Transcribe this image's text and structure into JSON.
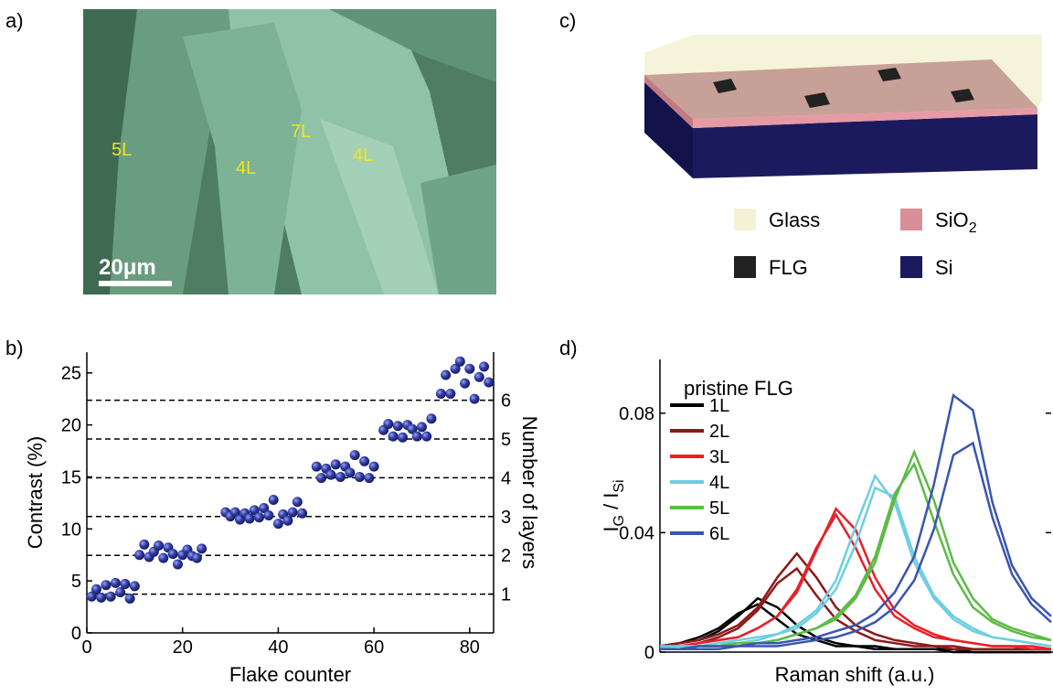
{
  "panel_labels": [
    "a)",
    "b)",
    "c)",
    "d)"
  ],
  "micrograph": {
    "labels": [
      "5L",
      "4L",
      "7L",
      "4L"
    ],
    "scale_bar": "20μm"
  },
  "diagram": {
    "legend": [
      {
        "text": "Glass",
        "color": "#f4f2d6"
      },
      {
        "text": "SiO",
        "sub": "2",
        "color": "#d98f99"
      },
      {
        "text": "FLG",
        "color": "#222222"
      },
      {
        "text": "Si",
        "color": "#1c1a5e"
      }
    ]
  },
  "chart_data": [
    {
      "type": "scatter",
      "xlabel": "Flake counter",
      "ylabel": "Contrast (%)",
      "y2label": "Number of layers",
      "xlim": [
        0,
        85
      ],
      "xticks": [
        0,
        20,
        40,
        60,
        80
      ],
      "ylim": [
        0,
        27
      ],
      "yticks": [
        0,
        5,
        10,
        15,
        20,
        25
      ],
      "y2lim": [
        0,
        7.24
      ],
      "y2ticks": [
        1,
        2,
        3,
        4,
        5,
        6
      ],
      "y2grid": true,
      "series": [
        {
          "color": "#2b3399",
          "x": [
            1,
            2,
            3,
            4,
            5,
            6,
            7,
            8,
            9,
            10,
            11,
            12,
            13,
            14,
            15,
            16,
            17,
            18,
            19,
            20,
            21,
            22,
            23,
            24,
            29,
            30,
            31,
            32,
            33,
            34,
            35,
            36,
            37,
            38,
            39,
            40,
            41,
            42,
            43,
            44,
            45,
            48,
            49,
            50,
            51,
            52,
            53,
            54,
            55,
            56,
            57,
            58,
            59,
            60,
            62,
            63,
            64,
            65,
            66,
            67,
            68,
            69,
            70,
            71,
            72,
            74,
            75,
            76,
            77,
            78,
            79,
            80,
            81,
            82,
            83,
            84
          ],
          "values": [
            3.5,
            4.2,
            3.4,
            4.6,
            3.5,
            4.8,
            3.9,
            4.7,
            3.3,
            4.5,
            7.5,
            8.5,
            7.3,
            7.8,
            8.4,
            7.2,
            8.2,
            7.6,
            6.6,
            7.5,
            8.0,
            7.4,
            7.2,
            8.1,
            11.6,
            11.2,
            11.6,
            10.9,
            11.5,
            11.0,
            11.8,
            11.1,
            12.0,
            11.3,
            12.8,
            10.5,
            11.4,
            10.8,
            11.6,
            12.6,
            11.5,
            16.0,
            14.9,
            15.8,
            15.2,
            16.2,
            15.0,
            16.0,
            15.4,
            17.1,
            15.0,
            16.5,
            14.9,
            16.0,
            19.5,
            20.1,
            18.9,
            19.9,
            18.8,
            20.0,
            19.6,
            18.9,
            19.8,
            18.9,
            20.6,
            23.0,
            24.8,
            23.0,
            25.4,
            26.1,
            24.0,
            25.4,
            22.5,
            24.6,
            25.6,
            24.1
          ]
        }
      ]
    },
    {
      "type": "line",
      "annotation": "pristine FLG",
      "xlabel": "Raman shift (a.u.)",
      "ylabel_parts": [
        "I",
        "G",
        " / I",
        "Si"
      ],
      "xlim": [
        0,
        100
      ],
      "ylim": [
        0,
        0.098
      ],
      "yticks": [
        0,
        0.04,
        0.08
      ],
      "x": [
        0,
        5,
        10,
        15,
        20,
        25,
        30,
        35,
        40,
        45,
        50,
        55,
        60,
        65,
        70,
        75,
        80,
        85,
        90,
        95,
        100
      ],
      "series": [
        {
          "name": "1L",
          "color": "#000000",
          "curves": [
            [
              0.002,
              0.003,
              0.004,
              0.007,
              0.012,
              0.018,
              0.015,
              0.009,
              0.005,
              0.003,
              0.002,
              0.002,
              0.001,
              0.001,
              0.001,
              0.001,
              0,
              0,
              0,
              0,
              0
            ],
            [
              0.002,
              0.003,
              0.005,
              0.008,
              0.013,
              0.016,
              0.011,
              0.006,
              0.004,
              0.002,
              0.002,
              0.001,
              0.001,
              0.001,
              0.001,
              0,
              0,
              0,
              0,
              0,
              0
            ]
          ]
        },
        {
          "name": "2L",
          "color": "#8b1a1a",
          "curves": [
            [
              0.002,
              0.003,
              0.004,
              0.006,
              0.009,
              0.015,
              0.025,
              0.033,
              0.025,
              0.015,
              0.009,
              0.006,
              0.004,
              0.003,
              0.002,
              0.002,
              0.001,
              0.001,
              0.001,
              0.001,
              0.001
            ],
            [
              0.002,
              0.002,
              0.003,
              0.005,
              0.008,
              0.014,
              0.023,
              0.028,
              0.019,
              0.011,
              0.007,
              0.004,
              0.003,
              0.002,
              0.002,
              0.001,
              0.001,
              0.001,
              0.001,
              0.001,
              0.001
            ]
          ]
        },
        {
          "name": "3L",
          "color": "#e8202a",
          "curves": [
            [
              0.002,
              0.002,
              0.003,
              0.004,
              0.005,
              0.008,
              0.012,
              0.02,
              0.034,
              0.048,
              0.041,
              0.025,
              0.014,
              0.009,
              0.006,
              0.004,
              0.003,
              0.002,
              0.002,
              0.002,
              0.001
            ],
            [
              0.002,
              0.002,
              0.003,
              0.004,
              0.005,
              0.008,
              0.012,
              0.021,
              0.035,
              0.046,
              0.035,
              0.021,
              0.012,
              0.008,
              0.005,
              0.004,
              0.003,
              0.002,
              0.002,
              0.001,
              0.001
            ]
          ]
        },
        {
          "name": "4L",
          "color": "#6dcfe0",
          "curves": [
            [
              0.002,
              0.002,
              0.002,
              0.003,
              0.004,
              0.005,
              0.006,
              0.009,
              0.014,
              0.024,
              0.042,
              0.059,
              0.05,
              0.03,
              0.018,
              0.011,
              0.007,
              0.005,
              0.004,
              0.003,
              0.002
            ],
            [
              0.001,
              0.002,
              0.002,
              0.003,
              0.003,
              0.004,
              0.006,
              0.008,
              0.013,
              0.021,
              0.036,
              0.055,
              0.052,
              0.032,
              0.019,
              0.012,
              0.008,
              0.005,
              0.004,
              0.003,
              0.002
            ]
          ]
        },
        {
          "name": "5L",
          "color": "#5dbb46",
          "curves": [
            [
              0.001,
              0.001,
              0.002,
              0.002,
              0.003,
              0.003,
              0.004,
              0.006,
              0.008,
              0.011,
              0.018,
              0.03,
              0.051,
              0.067,
              0.051,
              0.03,
              0.018,
              0.011,
              0.008,
              0.006,
              0.004
            ],
            [
              0.001,
              0.001,
              0.002,
              0.002,
              0.003,
              0.003,
              0.004,
              0.006,
              0.008,
              0.012,
              0.019,
              0.032,
              0.053,
              0.063,
              0.044,
              0.026,
              0.015,
              0.01,
              0.007,
              0.005,
              0.004
            ]
          ]
        },
        {
          "name": "6L",
          "color": "#3a55b0",
          "curves": [
            [
              0.001,
              0.001,
              0.002,
              0.002,
              0.002,
              0.003,
              0.003,
              0.004,
              0.005,
              0.007,
              0.009,
              0.013,
              0.02,
              0.032,
              0.056,
              0.086,
              0.081,
              0.05,
              0.029,
              0.018,
              0.012
            ],
            [
              0.001,
              0.001,
              0.001,
              0.001,
              0.002,
              0.002,
              0.002,
              0.003,
              0.004,
              0.005,
              0.007,
              0.01,
              0.015,
              0.024,
              0.041,
              0.066,
              0.07,
              0.045,
              0.026,
              0.016,
              0.01
            ]
          ]
        }
      ]
    }
  ]
}
